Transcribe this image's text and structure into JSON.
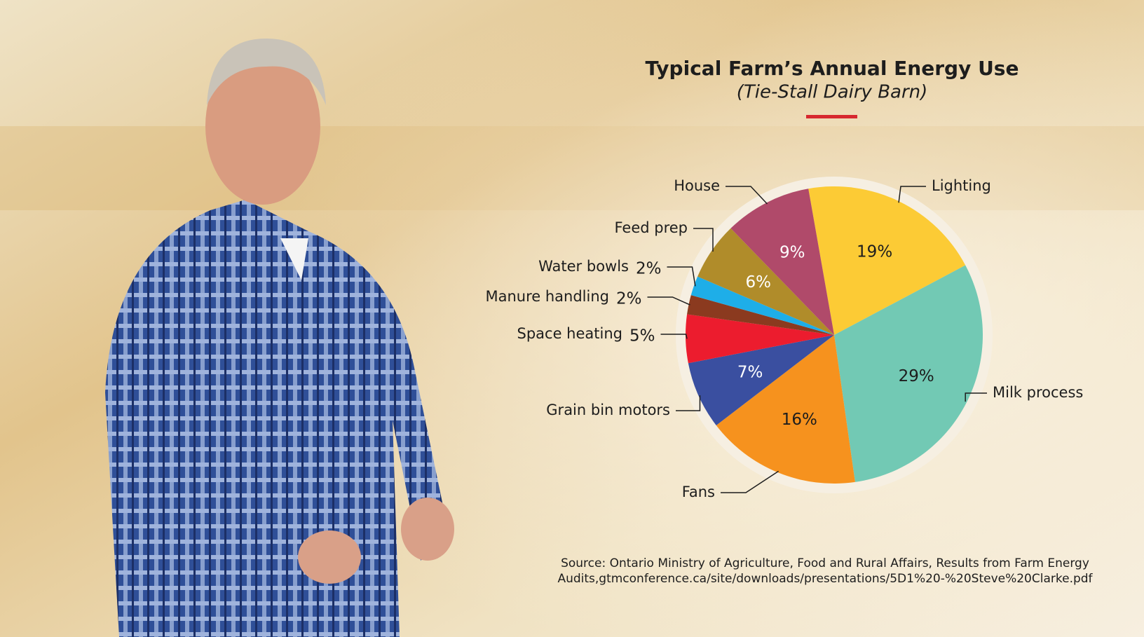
{
  "chart_data": {
    "type": "pie",
    "title": "Typical Farm’s Annual Energy Use",
    "subtitle": "(Tie-Stall Dairy Barn)",
    "categories": [
      "Lighting",
      "Milk process",
      "Fans",
      "Grain bin motors",
      "Space heating",
      "Manure handling",
      "Water bowls",
      "Feed prep",
      "House"
    ],
    "values": [
      19,
      29,
      16,
      7,
      5,
      2,
      2,
      6,
      9
    ],
    "value_labels": [
      "19%",
      "29%",
      "16%",
      "7%",
      "5%",
      "2%",
      "2%",
      "6%",
      "9%"
    ],
    "colors": [
      "#fccb35",
      "#72c9b4",
      "#f6921e",
      "#3a4fa0",
      "#ec1c2e",
      "#8b3a1f",
      "#1eaee8",
      "#b08c2a",
      "#b04a6a"
    ],
    "source": [
      "Source: Ontario Ministry of Agriculture, Food and Rural Affairs, Results from Farm Energy",
      "Audits,gtmconference.ca/site/downloads/presentations/5D1%20-%20Steve%20Clarke.pdf"
    ]
  }
}
